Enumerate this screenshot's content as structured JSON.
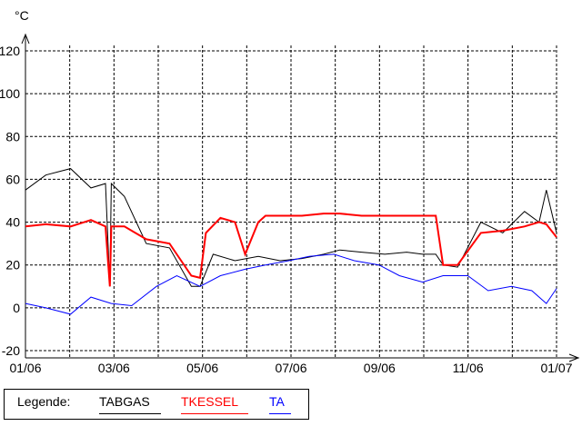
{
  "chart_data": {
    "type": "line",
    "ylabel": "°C",
    "xlabel": "",
    "ylim": [
      -20,
      120
    ],
    "yticks": [
      "-20",
      "0",
      "20",
      "40",
      "60",
      "80",
      "100",
      "120"
    ],
    "xticks": [
      "01/06",
      "03/06",
      "05/06",
      "07/06",
      "09/06",
      "11/06",
      "01/07"
    ],
    "grid": true,
    "legend_position": "bottom-left",
    "legend_title": "Legende:",
    "series": [
      {
        "name": "TABGAS",
        "color": "#000000",
        "x": [
          "2006-01-01",
          "2006-01-15",
          "2006-02-01",
          "2006-02-15",
          "2006-02-25",
          "2006-02-28",
          "2006-03-01",
          "2006-03-10",
          "2006-03-25",
          "2006-04-10",
          "2006-04-25",
          "2006-05-01",
          "2006-05-10",
          "2006-05-25",
          "2006-06-10",
          "2006-06-25",
          "2006-07-10",
          "2006-07-25",
          "2006-08-05",
          "2006-08-20",
          "2006-09-05",
          "2006-09-20",
          "2006-10-01",
          "2006-10-10",
          "2006-10-15",
          "2006-10-25",
          "2006-11-10",
          "2006-11-25",
          "2006-12-10",
          "2006-12-20",
          "2006-12-25",
          "2007-01-01"
        ],
        "values": [
          55,
          62,
          65,
          56,
          58,
          10,
          58,
          52,
          30,
          28,
          10,
          10,
          25,
          22,
          24,
          22,
          23,
          25,
          27,
          26,
          25,
          26,
          25,
          25,
          20,
          19,
          40,
          35,
          45,
          40,
          55,
          35
        ]
      },
      {
        "name": "TKESSEL",
        "color": "#ff0000",
        "x": [
          "2006-01-01",
          "2006-01-15",
          "2006-02-01",
          "2006-02-15",
          "2006-02-25",
          "2006-02-28",
          "2006-03-01",
          "2006-03-10",
          "2006-03-25",
          "2006-04-10",
          "2006-04-25",
          "2006-05-01",
          "2006-05-05",
          "2006-05-15",
          "2006-05-25",
          "2006-06-01",
          "2006-06-10",
          "2006-06-15",
          "2006-07-10",
          "2006-07-25",
          "2006-08-05",
          "2006-08-20",
          "2006-09-05",
          "2006-09-20",
          "2006-10-01",
          "2006-10-10",
          "2006-10-15",
          "2006-10-25",
          "2006-11-10",
          "2006-11-25",
          "2006-12-10",
          "2006-12-20",
          "2006-12-25",
          "2007-01-01"
        ],
        "values": [
          38,
          39,
          38,
          41,
          38,
          10,
          38,
          38,
          32,
          30,
          15,
          14,
          35,
          42,
          40,
          25,
          40,
          43,
          43,
          44,
          44,
          43,
          43,
          43,
          43,
          43,
          20,
          20,
          35,
          36,
          38,
          40,
          39,
          33
        ]
      },
      {
        "name": "TA",
        "color": "#0000ff",
        "x": [
          "2006-01-01",
          "2006-01-15",
          "2006-02-01",
          "2006-02-15",
          "2006-03-01",
          "2006-03-15",
          "2006-04-01",
          "2006-04-15",
          "2006-05-01",
          "2006-05-15",
          "2006-06-01",
          "2006-06-15",
          "2006-07-01",
          "2006-07-15",
          "2006-08-01",
          "2006-08-15",
          "2006-09-01",
          "2006-09-15",
          "2006-10-01",
          "2006-10-15",
          "2006-11-01",
          "2006-11-15",
          "2006-12-01",
          "2006-12-15",
          "2006-12-25",
          "2007-01-01"
        ],
        "values": [
          2,
          0,
          -3,
          5,
          2,
          1,
          10,
          15,
          10,
          15,
          18,
          20,
          22,
          24,
          25,
          22,
          20,
          15,
          12,
          15,
          15,
          8,
          10,
          8,
          2,
          9
        ]
      }
    ]
  }
}
